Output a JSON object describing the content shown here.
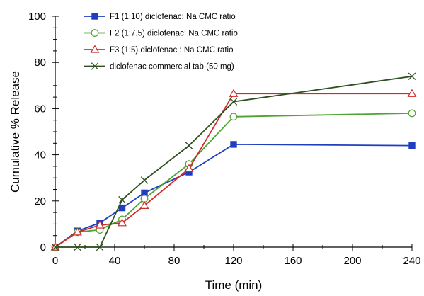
{
  "chart_data": {
    "type": "line",
    "title": "",
    "xlabel": "Time (min)",
    "ylabel": "Cumulative % Release",
    "xlim": [
      0,
      240
    ],
    "ylim": [
      0,
      100
    ],
    "xticks": [
      0,
      40,
      80,
      120,
      160,
      200,
      240
    ],
    "yticks": [
      0,
      20,
      40,
      60,
      80,
      100
    ],
    "grid": false,
    "legend_position": "top-left",
    "series": [
      {
        "name": "F1 (1:10) diclofenac: Na CMC ratio",
        "color": "#1f3fbf",
        "marker": "filled-square",
        "points": [
          [
            0,
            0
          ],
          [
            15,
            7
          ],
          [
            30,
            10.5
          ],
          [
            45,
            17
          ],
          [
            60,
            23.5
          ],
          [
            90,
            32.5
          ],
          [
            120,
            44.5
          ],
          [
            240,
            44
          ]
        ]
      },
      {
        "name": "F2 (1:7.5) diclofenac: Na CMC ratio",
        "color": "#4da42f",
        "marker": "open-circle",
        "points": [
          [
            0,
            0
          ],
          [
            15,
            6.5
          ],
          [
            30,
            7.5
          ],
          [
            45,
            12
          ],
          [
            60,
            21
          ],
          [
            90,
            36
          ],
          [
            120,
            56.5
          ],
          [
            240,
            58
          ]
        ]
      },
      {
        "name": "F3 (1:5) diclofenac : Na CMC ratio",
        "color": "#d12a2a",
        "marker": "open-triangle",
        "points": [
          [
            0,
            0
          ],
          [
            15,
            6.5
          ],
          [
            30,
            9.5
          ],
          [
            45,
            10.5
          ],
          [
            60,
            18
          ],
          [
            90,
            34
          ],
          [
            120,
            66.5
          ],
          [
            240,
            66.5
          ]
        ]
      },
      {
        "name": "diclofenac commercial tab (50 mg)",
        "color": "#2f4f1f",
        "marker": "x",
        "points": [
          [
            0,
            0
          ],
          [
            15,
            0
          ],
          [
            30,
            0
          ],
          [
            45,
            20.5
          ],
          [
            60,
            29
          ],
          [
            90,
            44
          ],
          [
            120,
            63
          ],
          [
            240,
            74
          ]
        ]
      }
    ]
  }
}
